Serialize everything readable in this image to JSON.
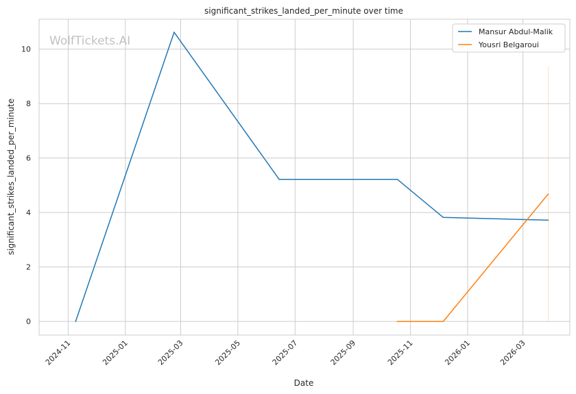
{
  "chart_data": {
    "type": "line",
    "title": "significant_strikes_landed_per_minute over time",
    "xlabel": "Date",
    "ylabel": "significant_strikes_landed_per_minute",
    "watermark": "WolfTickets.AI",
    "grid": true,
    "legend_position": "top-right",
    "xlim": [
      "2024-10-01",
      "2026-04-20"
    ],
    "ylim": [
      -0.5,
      11.1
    ],
    "x_ticks": [
      "2024-11",
      "2025-01",
      "2025-03",
      "2025-05",
      "2025-07",
      "2025-09",
      "2025-11",
      "2026-01",
      "2026-03"
    ],
    "y_ticks": [
      0,
      2,
      4,
      6,
      8,
      10
    ],
    "series": [
      {
        "name": "Mansur Abdul-Malik",
        "color": "#1f77b4",
        "points": [
          {
            "x": "2024-11-09",
            "y": 0
          },
          {
            "x": "2025-02-22",
            "y": 10.62
          },
          {
            "x": "2025-06-14",
            "y": 5.22
          },
          {
            "x": "2025-10-18",
            "y": 5.22
          },
          {
            "x": "2025-12-06",
            "y": 3.82
          },
          {
            "x": "2026-03-28",
            "y": 3.72
          }
        ]
      },
      {
        "name": "Yousri Belgaroui",
        "color": "#ff7f0e",
        "points": [
          {
            "x": "2025-10-18",
            "y": 0
          },
          {
            "x": "2025-12-06",
            "y": 0
          },
          {
            "x": "2026-03-28",
            "y": 4.68
          }
        ],
        "spread": {
          "x": "2026-03-28",
          "low": 0,
          "high": 9.36
        }
      }
    ]
  }
}
